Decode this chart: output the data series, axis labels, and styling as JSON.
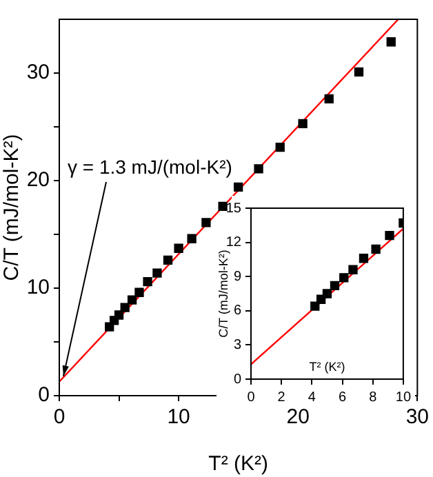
{
  "chart_data": [
    {
      "type": "scatter",
      "xlabel": "T² (K²)",
      "ylabel": "C/T (mJ/mol-K²)",
      "xlim": [
        0,
        30
      ],
      "ylim": [
        0,
        35
      ],
      "xticks": [
        0,
        {
          "value": 5,
          "label": null
        },
        10,
        {
          "value": 15,
          "label": null
        },
        20,
        {
          "value": 25,
          "label": null
        },
        30
      ],
      "yticks": [
        0,
        {
          "value": 5,
          "label": null
        },
        10,
        {
          "value": 15,
          "label": null
        },
        20,
        {
          "value": 25,
          "label": null
        },
        30
      ],
      "grid": false,
      "legend": false,
      "annotations": [
        {
          "text": "γ = 1.3 mJ/(mol-K²)",
          "x": 0,
          "y": 1.3
        }
      ],
      "series": [
        {
          "type": "scatter",
          "marker": "square",
          "color": "#000000",
          "x": [
            4.2,
            4.6,
            5.0,
            5.5,
            6.1,
            6.7,
            7.4,
            8.2,
            9.1,
            10.0,
            11.1,
            12.3,
            13.7,
            15.0,
            16.7,
            18.5,
            20.4,
            22.6,
            25.1,
            27.8
          ],
          "values": [
            6.4,
            7.0,
            7.5,
            8.2,
            8.9,
            9.6,
            10.6,
            11.4,
            12.6,
            13.7,
            14.6,
            16.1,
            17.6,
            19.4,
            21.1,
            23.1,
            25.3,
            27.6,
            30.1,
            32.9
          ]
        },
        {
          "type": "line",
          "color": "#ff0000",
          "x": [
            0,
            28.4
          ],
          "values": [
            1.3,
            35.0
          ]
        }
      ]
    },
    {
      "type": "scatter",
      "xlabel": "T² (K²)",
      "ylabel": "C/T (mJ/mol-K²)",
      "xlim": [
        0,
        10
      ],
      "ylim": [
        0,
        15
      ],
      "xticks": [
        0,
        2,
        4,
        6,
        8,
        10
      ],
      "yticks": [
        0,
        3,
        6,
        9,
        12,
        15
      ],
      "grid": false,
      "legend": false,
      "series": [
        {
          "type": "scatter",
          "marker": "square",
          "color": "#000000",
          "x": [
            4.2,
            4.6,
            5.0,
            5.5,
            6.1,
            6.7,
            7.4,
            8.2,
            9.1,
            10.0
          ],
          "values": [
            6.4,
            7.0,
            7.5,
            8.2,
            8.9,
            9.6,
            10.6,
            11.4,
            12.6,
            13.7
          ]
        },
        {
          "type": "line",
          "color": "#ff0000",
          "x": [
            0,
            10
          ],
          "values": [
            1.3,
            13.2
          ]
        }
      ]
    }
  ]
}
